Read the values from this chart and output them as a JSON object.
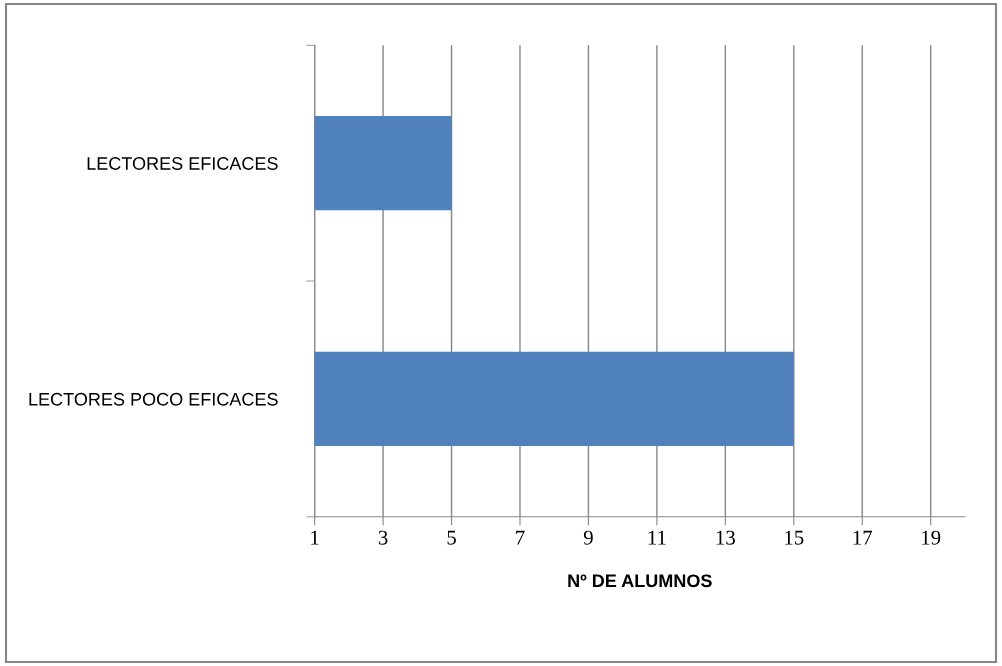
{
  "chart_data": {
    "type": "bar",
    "orientation": "horizontal",
    "categories": [
      "LECTORES EFICACES",
      "LECTORES POCO EFICACES"
    ],
    "values": [
      5,
      15
    ],
    "color": "#4f81bd",
    "xlabel": "Nº DE ALUMNOS",
    "xlim": [
      1,
      20
    ],
    "xticks": [
      1,
      3,
      5,
      7,
      9,
      11,
      13,
      15,
      17,
      19
    ],
    "grid": "x",
    "legend": false
  }
}
